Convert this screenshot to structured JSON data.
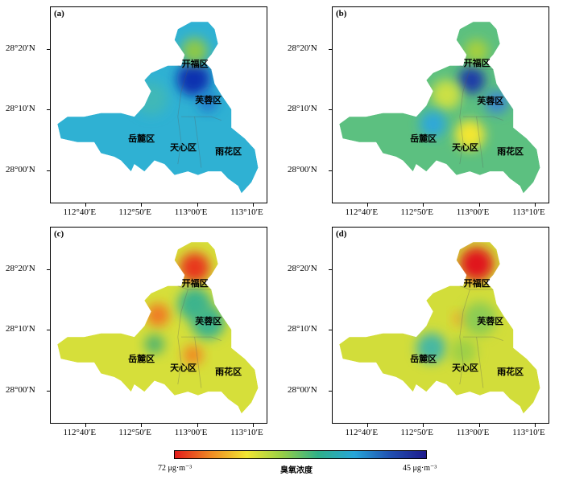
{
  "panels": [
    {
      "label": "(a)",
      "base_color": "#2fb1d3",
      "hotspots": [
        {
          "x": 112.987,
          "y": 28.253,
          "r": 0.05,
          "color": "#1030b0"
        },
        {
          "x": 113.03,
          "y": 28.19,
          "r": 0.03,
          "color": "#2478cc"
        },
        {
          "x": 112.99,
          "y": 28.33,
          "r": 0.04,
          "color": "#8cc84a"
        },
        {
          "x": 112.86,
          "y": 28.2,
          "r": 0.05,
          "color": "#40b8b8"
        }
      ]
    },
    {
      "label": "(b)",
      "base_color": "#5cc080",
      "hotspots": [
        {
          "x": 112.975,
          "y": 28.25,
          "r": 0.04,
          "color": "#1a3aa8"
        },
        {
          "x": 112.97,
          "y": 28.1,
          "r": 0.045,
          "color": "#f2e632"
        },
        {
          "x": 112.9,
          "y": 28.21,
          "r": 0.045,
          "color": "#cbe045"
        },
        {
          "x": 112.86,
          "y": 28.13,
          "r": 0.04,
          "color": "#2fa8d8"
        },
        {
          "x": 113.05,
          "y": 28.19,
          "r": 0.035,
          "color": "#3a86d0"
        },
        {
          "x": 112.99,
          "y": 28.33,
          "r": 0.035,
          "color": "#a6d03c"
        }
      ]
    },
    {
      "label": "(c)",
      "base_color": "#d6df3a",
      "hotspots": [
        {
          "x": 112.99,
          "y": 28.34,
          "r": 0.045,
          "color": "#e8391e"
        },
        {
          "x": 112.88,
          "y": 28.21,
          "r": 0.035,
          "color": "#f07a20"
        },
        {
          "x": 112.985,
          "y": 28.1,
          "r": 0.03,
          "color": "#f08a22"
        },
        {
          "x": 112.99,
          "y": 28.24,
          "r": 0.05,
          "color": "#3cb48c"
        },
        {
          "x": 113.03,
          "y": 28.19,
          "r": 0.05,
          "color": "#3cb48c"
        },
        {
          "x": 112.87,
          "y": 28.13,
          "r": 0.03,
          "color": "#56b66a"
        }
      ]
    },
    {
      "label": "(d)",
      "base_color": "#d2dd3a",
      "hotspots": [
        {
          "x": 112.99,
          "y": 28.35,
          "r": 0.05,
          "color": "#e0141a"
        },
        {
          "x": 112.94,
          "y": 28.2,
          "r": 0.02,
          "color": "#f3a62a"
        },
        {
          "x": 112.855,
          "y": 28.12,
          "r": 0.045,
          "color": "#46b8a2"
        },
        {
          "x": 112.95,
          "y": 28.11,
          "r": 0.04,
          "color": "#9ed046"
        },
        {
          "x": 113.0,
          "y": 28.2,
          "r": 0.05,
          "color": "#8ccc52"
        }
      ]
    }
  ],
  "x_ticks": [
    {
      "value": 112.667,
      "label": "112°40′E"
    },
    {
      "value": 112.833,
      "label": "112°50′E"
    },
    {
      "value": 113.0,
      "label": "113°00′E"
    },
    {
      "value": 113.167,
      "label": "113°10′E"
    }
  ],
  "y_ticks": [
    {
      "value": 28.333,
      "label": "28°20′N"
    },
    {
      "value": 28.167,
      "label": "28°10′N"
    },
    {
      "value": 28.0,
      "label": "28°00′N"
    }
  ],
  "districts": [
    {
      "name": "开福区",
      "lon": 112.99,
      "lat": 28.3
    },
    {
      "name": "芙蓉区",
      "lon": 113.03,
      "lat": 28.2
    },
    {
      "name": "岳麓区",
      "lon": 112.83,
      "lat": 28.1
    },
    {
      "name": "天心区",
      "lon": 112.955,
      "lat": 28.07
    },
    {
      "name": "雨花区",
      "lon": 113.09,
      "lat": 28.06
    }
  ],
  "legend": {
    "title": "臭氧浓度",
    "max_label": "72 μg·m⁻³",
    "min_label": "45 μg·m⁻³",
    "stops": [
      "#e21c1c",
      "#f08a24",
      "#f2e632",
      "#96cf48",
      "#2fb089",
      "#26a6d8",
      "#2050b0",
      "#1e1a8c"
    ]
  }
}
